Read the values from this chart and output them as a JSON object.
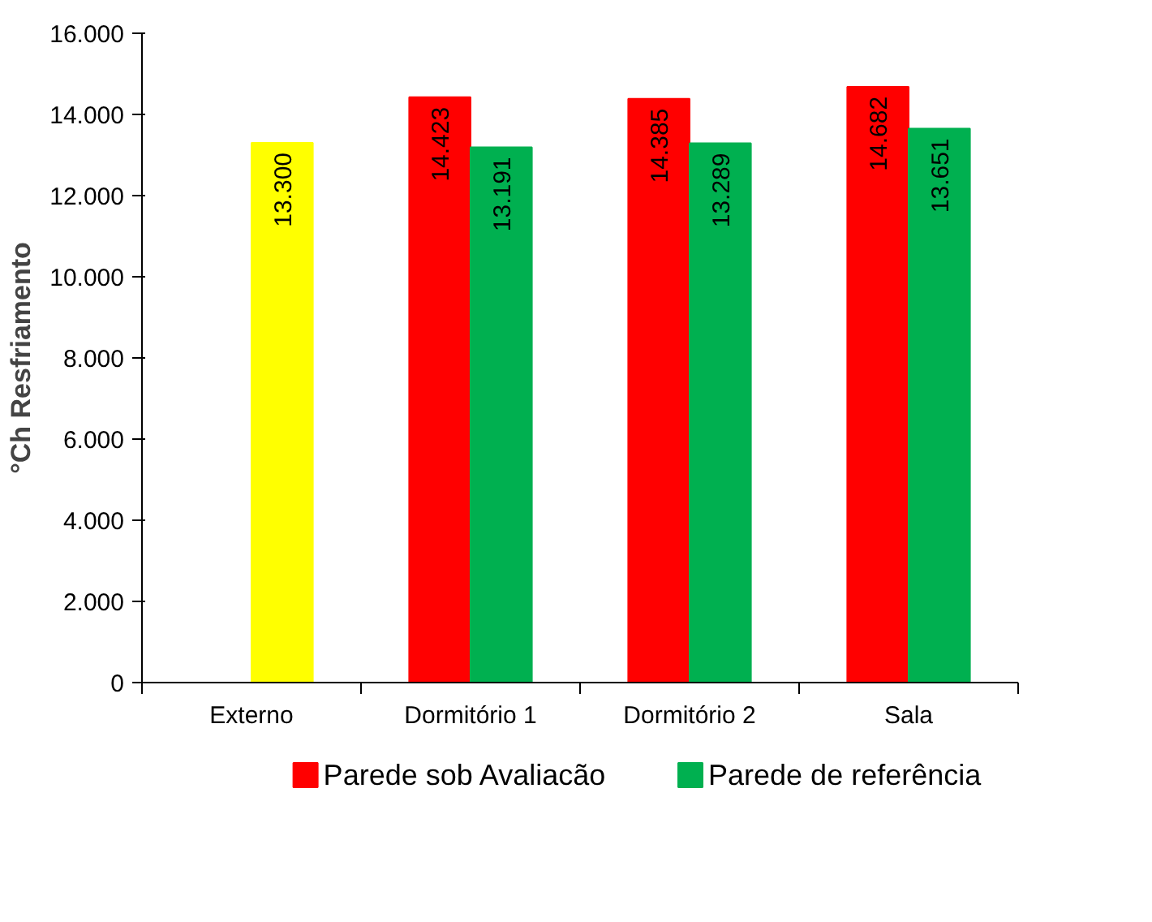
{
  "chart_data": {
    "type": "bar",
    "ylabel": "°Ch Resfriamento",
    "categories": [
      "Externo",
      "Dormitório 1",
      "Dormitório 2",
      "Sala"
    ],
    "series": [
      {
        "name": "Parede sob Avaliacão",
        "color": "#ff0000",
        "values": [
          null,
          14423,
          14385,
          14682
        ],
        "value_labels": [
          null,
          "14.423",
          "14.385",
          "14.682"
        ]
      },
      {
        "name": "Parede de referência",
        "color": "#00b050",
        "colors": [
          "#ffff00",
          "#00b050",
          "#00b050",
          "#00b050"
        ],
        "values": [
          13300,
          13191,
          13289,
          13651
        ],
        "value_labels": [
          "13.300",
          "13.191",
          "13.289",
          "13.651"
        ]
      }
    ],
    "ylim": [
      0,
      16000
    ],
    "yticks": [
      {
        "value": 0,
        "label": "0"
      },
      {
        "value": 2000,
        "label": "2.000"
      },
      {
        "value": 4000,
        "label": "4.000"
      },
      {
        "value": 6000,
        "label": "6.000"
      },
      {
        "value": 8000,
        "label": "8.000"
      },
      {
        "value": 10000,
        "label": "10.000"
      },
      {
        "value": 12000,
        "label": "12.000"
      },
      {
        "value": 14000,
        "label": "14.000"
      },
      {
        "value": 16000,
        "label": "16.000"
      }
    ],
    "grid": false,
    "legend": "bottom"
  }
}
